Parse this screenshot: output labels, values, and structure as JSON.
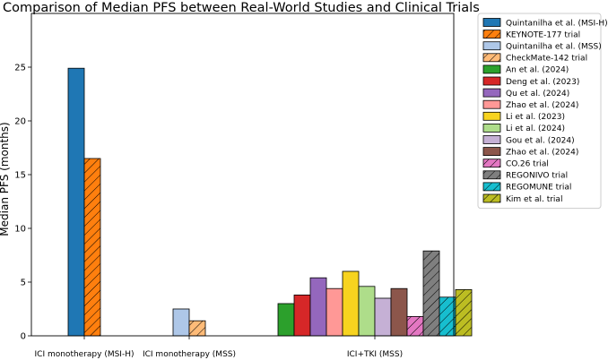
{
  "chart_data": {
    "type": "bar",
    "title": "Comparison of Median PFS between Real-World Studies and Clinical Trials",
    "xlabel": "",
    "ylabel": "Median PFS (months)",
    "ylim": [
      0,
      30
    ],
    "yticks": [
      0,
      5,
      10,
      15,
      20,
      25
    ],
    "grid": false,
    "legend_position": "outside right",
    "groups": [
      {
        "label": "ICI monotherapy (MSI-H)",
        "series": [
          "Quintanilha et al. (MSI-H)",
          "KEYNOTE-177 trial"
        ]
      },
      {
        "label": "ICI monotherapy (MSS)",
        "series": [
          "Quintanilha et al. (MSS)",
          "CheckMate-142 trial"
        ]
      },
      {
        "label": "ICI+TKI (MSS)",
        "series": [
          "An et al. (2024)",
          "Deng et al. (2023)",
          "Qu et al. (2024)",
          "Zhao et al. (2024) ",
          "Li et al. (2023)",
          "Li et al. (2024)",
          "Gou et al. (2024)",
          "Zhao et al. (2024)",
          "CO.26 trial",
          "REGONIVO trial",
          "REGOMUNE trial",
          "Kim et al. trial"
        ]
      }
    ],
    "series": [
      {
        "name": "Quintanilha et al. (MSI-H)",
        "value": 24.9,
        "color": "#1f77b4",
        "hatch": false
      },
      {
        "name": "KEYNOTE-177 trial",
        "value": 16.5,
        "color": "#ff7f0e",
        "hatch": true
      },
      {
        "name": "Quintanilha et al. (MSS)",
        "value": 2.5,
        "color": "#aec7e8",
        "hatch": false
      },
      {
        "name": "CheckMate-142 trial",
        "value": 1.4,
        "color": "#ffbb78",
        "hatch": true
      },
      {
        "name": "An et al. (2024)",
        "value": 3.0,
        "color": "#2ca02c",
        "hatch": false
      },
      {
        "name": "Deng et al. (2023)",
        "value": 3.8,
        "color": "#d62728",
        "hatch": false
      },
      {
        "name": "Qu et al. (2024)",
        "value": 5.4,
        "color": "#9467bd",
        "hatch": false
      },
      {
        "name": "Zhao et al. (2024) ",
        "value": 4.4,
        "color": "#ff9896",
        "hatch": false
      },
      {
        "name": "Li et al. (2023)",
        "value": 6.0,
        "color": "#f7d31f",
        "hatch": false
      },
      {
        "name": "Li et al. (2024)",
        "value": 4.6,
        "color": "#aedd8a",
        "hatch": false
      },
      {
        "name": "Gou et al. (2024)",
        "value": 3.5,
        "color": "#c5b0d5",
        "hatch": false
      },
      {
        "name": "Zhao et al. (2024)",
        "value": 4.4,
        "color": "#8c564b",
        "hatch": false
      },
      {
        "name": "CO.26 trial",
        "value": 1.8,
        "color": "#e377c2",
        "hatch": true
      },
      {
        "name": "REGONIVO trial",
        "value": 7.9,
        "color": "#7f7f7f",
        "hatch": true
      },
      {
        "name": "REGOMUNE trial",
        "value": 3.6,
        "color": "#17becf",
        "hatch": true
      },
      {
        "name": "Kim et al. trial",
        "value": 4.3,
        "color": "#bcbd22",
        "hatch": true
      }
    ]
  }
}
